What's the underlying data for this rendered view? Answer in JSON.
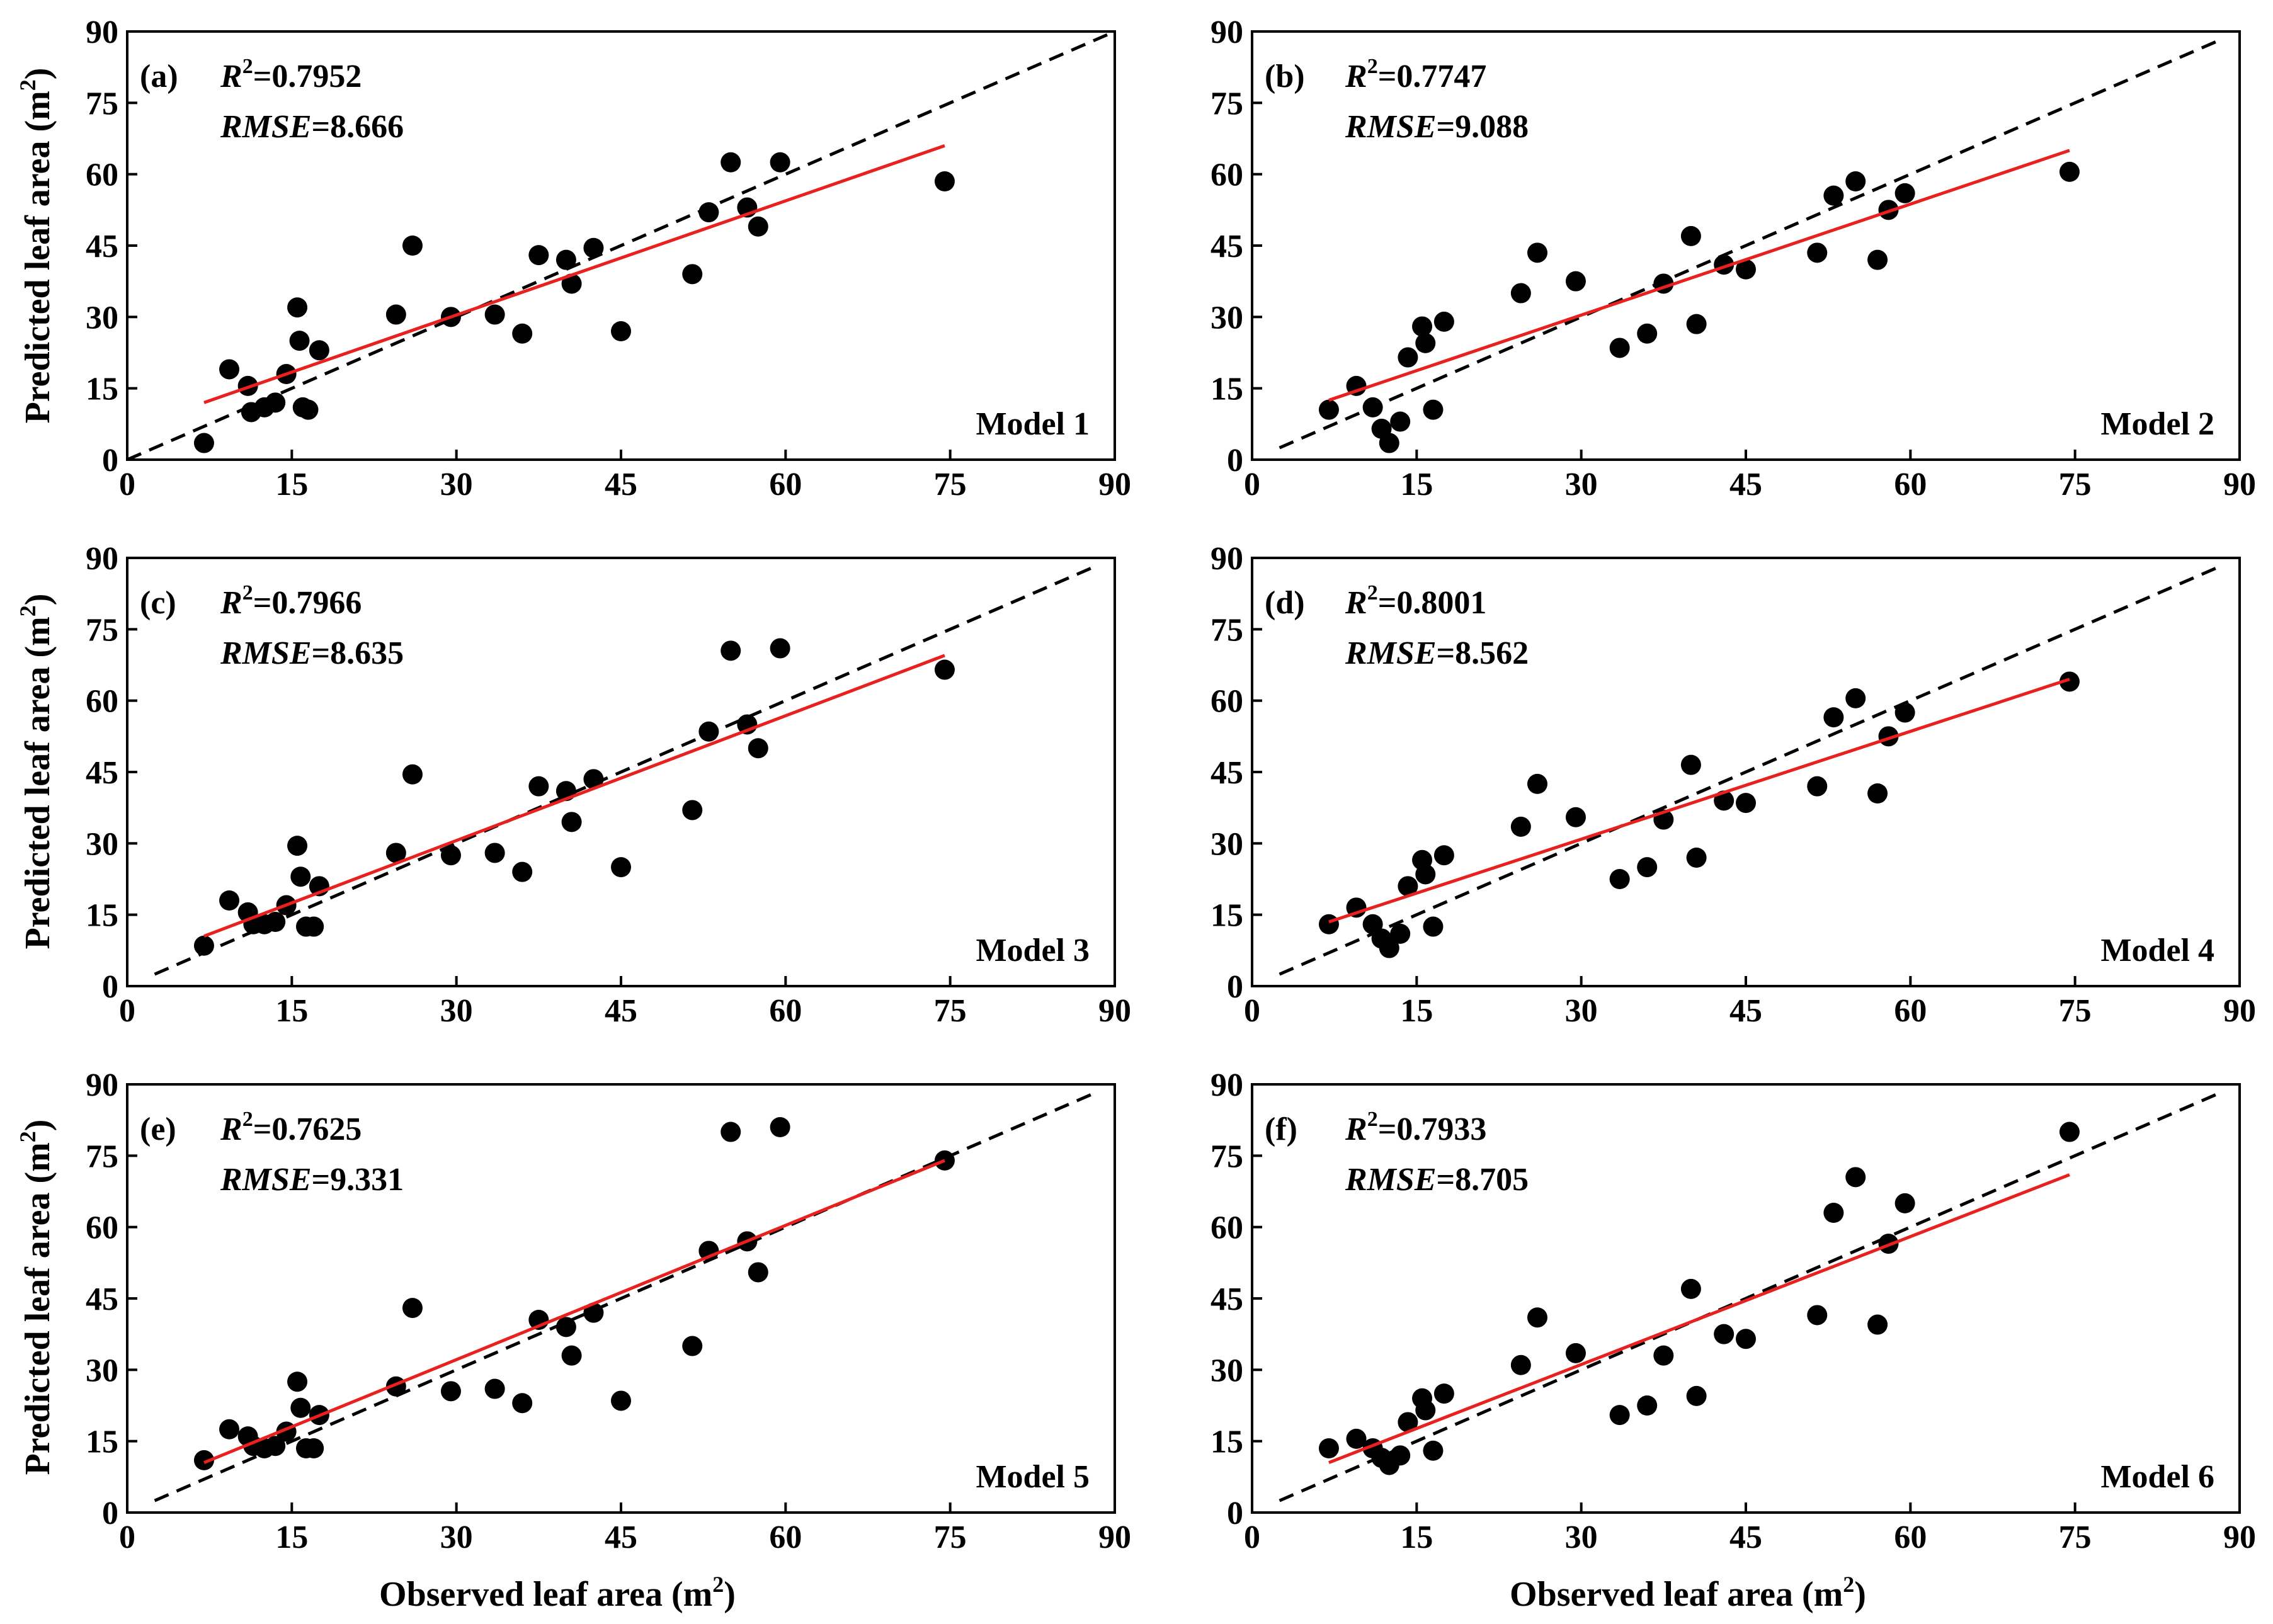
{
  "figure": {
    "x_label_text": "Observed leaf area (m",
    "y_label_text": "Predicted leaf area (m",
    "unit_superscript": "2"
  },
  "chart_data": [
    {
      "type": "scatter",
      "panel_label": "(a)",
      "model": "Model 1",
      "r2_label": "R",
      "r2_value": "=0.7952",
      "rmse_label": "RMSE",
      "rmse_value": "=8.666",
      "xlim": [
        0,
        90
      ],
      "ylim": [
        0,
        90
      ],
      "xticks": [
        "0",
        "15",
        "30",
        "45",
        "60",
        "75",
        "90"
      ],
      "yticks": [
        "0",
        "15",
        "30",
        "45",
        "60",
        "75",
        "90"
      ],
      "xlabel": "",
      "ylabel": "Predicted leaf area (m2)",
      "points": [
        [
          7,
          3.5
        ],
        [
          9.3,
          19
        ],
        [
          11,
          15.5
        ],
        [
          11.3,
          10
        ],
        [
          12.5,
          11
        ],
        [
          13.5,
          12
        ],
        [
          14.5,
          18
        ],
        [
          15.5,
          32
        ],
        [
          15.7,
          25
        ],
        [
          16,
          11
        ],
        [
          16.5,
          10.5
        ],
        [
          17.5,
          23
        ],
        [
          24.5,
          30.5
        ],
        [
          26,
          45
        ],
        [
          29.5,
          30
        ],
        [
          33.5,
          30.5
        ],
        [
          36,
          26.5
        ],
        [
          37.5,
          43
        ],
        [
          40,
          42
        ],
        [
          40.5,
          37
        ],
        [
          42.5,
          44.5
        ],
        [
          45,
          27
        ],
        [
          51.5,
          39
        ],
        [
          53,
          52
        ],
        [
          55,
          62.5
        ],
        [
          56.5,
          53
        ],
        [
          57.5,
          49
        ],
        [
          59.5,
          62.5
        ],
        [
          74.5,
          58.5
        ]
      ],
      "one_to_one": [
        [
          0,
          0
        ],
        [
          90,
          90
        ]
      ],
      "fit_line": [
        [
          7,
          12
        ],
        [
          74.5,
          66
        ]
      ]
    },
    {
      "type": "scatter",
      "panel_label": "(b)",
      "model": "Model 2",
      "r2_label": "R",
      "r2_value": "=0.7747",
      "rmse_label": "RMSE",
      "rmse_value": "=9.088",
      "xlim": [
        0,
        90
      ],
      "ylim": [
        0,
        90
      ],
      "xticks": [
        "0",
        "15",
        "30",
        "45",
        "60",
        "75",
        "90"
      ],
      "yticks": [
        "0",
        "15",
        "30",
        "45",
        "60",
        "75",
        "90"
      ],
      "xlabel": "",
      "ylabel": "",
      "points": [
        [
          7,
          10.5
        ],
        [
          9.5,
          15.5
        ],
        [
          11,
          11
        ],
        [
          11.8,
          6.5
        ],
        [
          12.5,
          3.5
        ],
        [
          13.5,
          8
        ],
        [
          14.2,
          21.5
        ],
        [
          15.5,
          28
        ],
        [
          15.8,
          24.5
        ],
        [
          16.5,
          10.5
        ],
        [
          17.5,
          29
        ],
        [
          24.5,
          35
        ],
        [
          26,
          43.5
        ],
        [
          29.5,
          37.5
        ],
        [
          33.5,
          23.5
        ],
        [
          36,
          26.5
        ],
        [
          37.5,
          37
        ],
        [
          40,
          47
        ],
        [
          40.5,
          28.5
        ],
        [
          43,
          41
        ],
        [
          45,
          40
        ],
        [
          51.5,
          43.5
        ],
        [
          53,
          55.5
        ],
        [
          55,
          58.5
        ],
        [
          57,
          42
        ],
        [
          58,
          52.5
        ],
        [
          59.5,
          56
        ],
        [
          74.5,
          60.5
        ]
      ],
      "one_to_one": [
        [
          2.5,
          2.5
        ],
        [
          88.5,
          88.5
        ]
      ],
      "fit_line": [
        [
          7,
          12.5
        ],
        [
          74.5,
          65
        ]
      ]
    },
    {
      "type": "scatter",
      "panel_label": "(c)",
      "model": "Model 3",
      "r2_label": "R",
      "r2_value": "=0.7966",
      "rmse_label": "RMSE",
      "rmse_value": "=8.635",
      "xlim": [
        0,
        90
      ],
      "ylim": [
        0,
        90
      ],
      "xticks": [
        "0",
        "15",
        "30",
        "45",
        "60",
        "75",
        "90"
      ],
      "yticks": [
        "0",
        "15",
        "30",
        "45",
        "60",
        "75",
        "90"
      ],
      "xlabel": "",
      "ylabel": "Predicted leaf area (m2)",
      "points": [
        [
          7,
          8.5
        ],
        [
          9.3,
          18
        ],
        [
          11,
          15.5
        ],
        [
          11.5,
          13
        ],
        [
          12.5,
          13
        ],
        [
          13.5,
          13.5
        ],
        [
          14.5,
          17
        ],
        [
          15.5,
          29.5
        ],
        [
          15.8,
          23
        ],
        [
          16.3,
          12.5
        ],
        [
          17,
          12.5
        ],
        [
          17.5,
          21
        ],
        [
          24.5,
          28
        ],
        [
          26,
          44.5
        ],
        [
          29.5,
          27.5
        ],
        [
          33.5,
          28
        ],
        [
          36,
          24
        ],
        [
          37.5,
          42
        ],
        [
          40,
          41
        ],
        [
          40.5,
          34.5
        ],
        [
          42.5,
          43.5
        ],
        [
          45,
          25
        ],
        [
          51.5,
          37
        ],
        [
          53,
          53.5
        ],
        [
          55,
          70.5
        ],
        [
          56.5,
          55
        ],
        [
          57.5,
          50
        ],
        [
          59.5,
          71
        ],
        [
          74.5,
          66.5
        ]
      ],
      "one_to_one": [
        [
          2.5,
          2.5
        ],
        [
          88.5,
          88.5
        ]
      ],
      "fit_line": [
        [
          7,
          10.5
        ],
        [
          74.5,
          69.5
        ]
      ]
    },
    {
      "type": "scatter",
      "panel_label": "(d)",
      "model": "Model 4",
      "r2_label": "R",
      "r2_value": "=0.8001",
      "rmse_label": "RMSE",
      "rmse_value": "=8.562",
      "xlim": [
        0,
        90
      ],
      "ylim": [
        0,
        90
      ],
      "xticks": [
        "0",
        "15",
        "30",
        "45",
        "60",
        "75",
        "90"
      ],
      "yticks": [
        "0",
        "15",
        "30",
        "45",
        "60",
        "75",
        "90"
      ],
      "xlabel": "",
      "ylabel": "",
      "points": [
        [
          7,
          13
        ],
        [
          9.5,
          16.5
        ],
        [
          11,
          13
        ],
        [
          11.8,
          10
        ],
        [
          12.5,
          8
        ],
        [
          13.5,
          11
        ],
        [
          14.2,
          21
        ],
        [
          15.5,
          26.5
        ],
        [
          15.8,
          23.5
        ],
        [
          16.5,
          12.5
        ],
        [
          17.5,
          27.5
        ],
        [
          24.5,
          33.5
        ],
        [
          26,
          42.5
        ],
        [
          29.5,
          35.5
        ],
        [
          33.5,
          22.5
        ],
        [
          36,
          25
        ],
        [
          37.5,
          35
        ],
        [
          40,
          46.5
        ],
        [
          40.5,
          27
        ],
        [
          43,
          39
        ],
        [
          45,
          38.5
        ],
        [
          51.5,
          42
        ],
        [
          53,
          56.5
        ],
        [
          55,
          60.5
        ],
        [
          57,
          40.5
        ],
        [
          58,
          52.5
        ],
        [
          59.5,
          57.5
        ],
        [
          74.5,
          64
        ]
      ],
      "one_to_one": [
        [
          2.5,
          2.5
        ],
        [
          88.5,
          88.5
        ]
      ],
      "fit_line": [
        [
          7,
          13.5
        ],
        [
          74.5,
          64.5
        ]
      ]
    },
    {
      "type": "scatter",
      "panel_label": "(e)",
      "model": "Model 5",
      "r2_label": "R",
      "r2_value": "=0.7625",
      "rmse_label": "RMSE",
      "rmse_value": "=9.331",
      "xlim": [
        0,
        90
      ],
      "ylim": [
        0,
        90
      ],
      "xticks": [
        "0",
        "15",
        "30",
        "45",
        "60",
        "75",
        "90"
      ],
      "yticks": [
        "0",
        "15",
        "30",
        "45",
        "60",
        "75",
        "90"
      ],
      "xlabel": "Observed leaf area (m2)",
      "ylabel": "Predicted leaf area (m2)",
      "points": [
        [
          7,
          11
        ],
        [
          9.3,
          17.5
        ],
        [
          11,
          16
        ],
        [
          11.5,
          14
        ],
        [
          12.5,
          13.5
        ],
        [
          13.5,
          14
        ],
        [
          14.5,
          17
        ],
        [
          15.5,
          27.5
        ],
        [
          15.8,
          22
        ],
        [
          16.3,
          13.5
        ],
        [
          17,
          13.5
        ],
        [
          17.5,
          20.5
        ],
        [
          24.5,
          26.5
        ],
        [
          26,
          43
        ],
        [
          29.5,
          25.5
        ],
        [
          33.5,
          26
        ],
        [
          36,
          23
        ],
        [
          37.5,
          40.5
        ],
        [
          40,
          39
        ],
        [
          40.5,
          33
        ],
        [
          42.5,
          42
        ],
        [
          45,
          23.5
        ],
        [
          51.5,
          35
        ],
        [
          53,
          55
        ],
        [
          55,
          80
        ],
        [
          56.5,
          57
        ],
        [
          57.5,
          50.5
        ],
        [
          59.5,
          81
        ],
        [
          74.5,
          74
        ]
      ],
      "one_to_one": [
        [
          2.5,
          2.5
        ],
        [
          88.5,
          88.5
        ]
      ],
      "fit_line": [
        [
          7,
          10.5
        ],
        [
          74.5,
          74
        ]
      ]
    },
    {
      "type": "scatter",
      "panel_label": "(f)",
      "model": "Model 6",
      "r2_label": "R",
      "r2_value": "=0.7933",
      "rmse_label": "RMSE",
      "rmse_value": "=8.705",
      "xlim": [
        0,
        90
      ],
      "ylim": [
        0,
        90
      ],
      "xticks": [
        "0",
        "15",
        "30",
        "45",
        "60",
        "75",
        "90"
      ],
      "yticks": [
        "0",
        "15",
        "30",
        "45",
        "60",
        "75",
        "90"
      ],
      "xlabel": "Observed leaf area (m2)",
      "ylabel": "",
      "points": [
        [
          7,
          13.5
        ],
        [
          9.5,
          15.5
        ],
        [
          11,
          13.5
        ],
        [
          11.8,
          11.5
        ],
        [
          12.5,
          10
        ],
        [
          13.5,
          12
        ],
        [
          14.2,
          19
        ],
        [
          15.5,
          24
        ],
        [
          15.8,
          21.5
        ],
        [
          16.5,
          13
        ],
        [
          17.5,
          25
        ],
        [
          24.5,
          31
        ],
        [
          26,
          41
        ],
        [
          29.5,
          33.5
        ],
        [
          33.5,
          20.5
        ],
        [
          36,
          22.5
        ],
        [
          37.5,
          33
        ],
        [
          40,
          47
        ],
        [
          40.5,
          24.5
        ],
        [
          43,
          37.5
        ],
        [
          45,
          36.5
        ],
        [
          51.5,
          41.5
        ],
        [
          53,
          63
        ],
        [
          55,
          70.5
        ],
        [
          57,
          39.5
        ],
        [
          58,
          56.5
        ],
        [
          59.5,
          65
        ],
        [
          74.5,
          80
        ]
      ],
      "one_to_one": [
        [
          2.5,
          2.5
        ],
        [
          88.5,
          88.5
        ]
      ],
      "fit_line": [
        [
          7,
          10.5
        ],
        [
          74.5,
          71
        ]
      ]
    }
  ]
}
